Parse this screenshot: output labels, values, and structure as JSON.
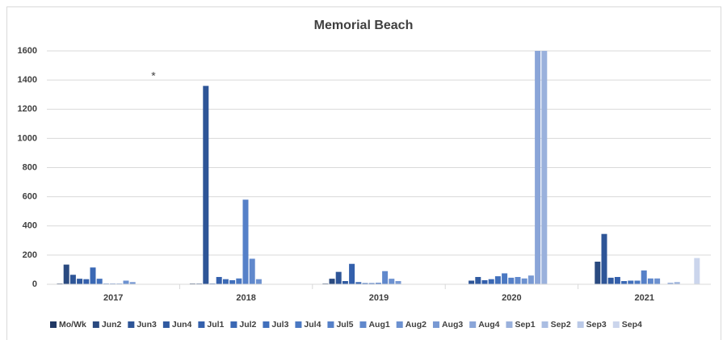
{
  "chart_data": {
    "type": "bar",
    "title": "Memorial Beach",
    "annotation": "*",
    "categories": [
      "2017",
      "2018",
      "2019",
      "2020",
      "2021"
    ],
    "ylim": [
      0,
      1600
    ],
    "yticks": [
      0,
      200,
      400,
      600,
      800,
      1000,
      1200,
      1400,
      1600
    ],
    "grid": true,
    "legend": "bottom",
    "series": [
      {
        "name": "Mo/Wk",
        "color": "#203864",
        "values": [
          5,
          5,
          5,
          null,
          null
        ]
      },
      {
        "name": "Jun2",
        "color": "#2a4a80",
        "values": [
          135,
          5,
          38,
          null,
          155
        ]
      },
      {
        "name": "Jun3",
        "color": "#2e5597",
        "values": [
          65,
          1360,
          85,
          25,
          345
        ]
      },
      {
        "name": "Jun4",
        "color": "#305aa0",
        "values": [
          38,
          5,
          22,
          50,
          45
        ]
      },
      {
        "name": "Jul1",
        "color": "#3460ac",
        "values": [
          35,
          50,
          140,
          28,
          50
        ]
      },
      {
        "name": "Jul2",
        "color": "#3a68b4",
        "values": [
          115,
          35,
          15,
          35,
          22
        ]
      },
      {
        "name": "Jul3",
        "color": "#4170bc",
        "values": [
          38,
          28,
          8,
          55,
          25
        ]
      },
      {
        "name": "Jul4",
        "color": "#4a78c2",
        "values": [
          5,
          40,
          8,
          75,
          25
        ]
      },
      {
        "name": "Jul5",
        "color": "#5580c8",
        "values": [
          5,
          580,
          10,
          45,
          95
        ]
      },
      {
        "name": "Aug1",
        "color": "#6088cc",
        "values": [
          5,
          175,
          90,
          50,
          40
        ]
      },
      {
        "name": "Aug2",
        "color": "#6c91d0",
        "values": [
          25,
          35,
          38,
          40,
          40
        ]
      },
      {
        "name": "Aug3",
        "color": "#7899d3",
        "values": [
          15,
          null,
          22,
          60,
          null
        ]
      },
      {
        "name": "Aug4",
        "color": "#8aa5d8",
        "values": [
          null,
          null,
          null,
          1600,
          10
        ]
      },
      {
        "name": "Sep1",
        "color": "#9ab1dc",
        "values": [
          null,
          null,
          null,
          1600,
          15
        ]
      },
      {
        "name": "Sep2",
        "color": "#aabde2",
        "values": [
          null,
          null,
          null,
          null,
          null
        ]
      },
      {
        "name": "Sep3",
        "color": "#bac9e7",
        "values": [
          null,
          null,
          null,
          null,
          null
        ]
      },
      {
        "name": "Sep4",
        "color": "#cbd5ec",
        "values": [
          null,
          null,
          null,
          null,
          180
        ]
      }
    ]
  }
}
